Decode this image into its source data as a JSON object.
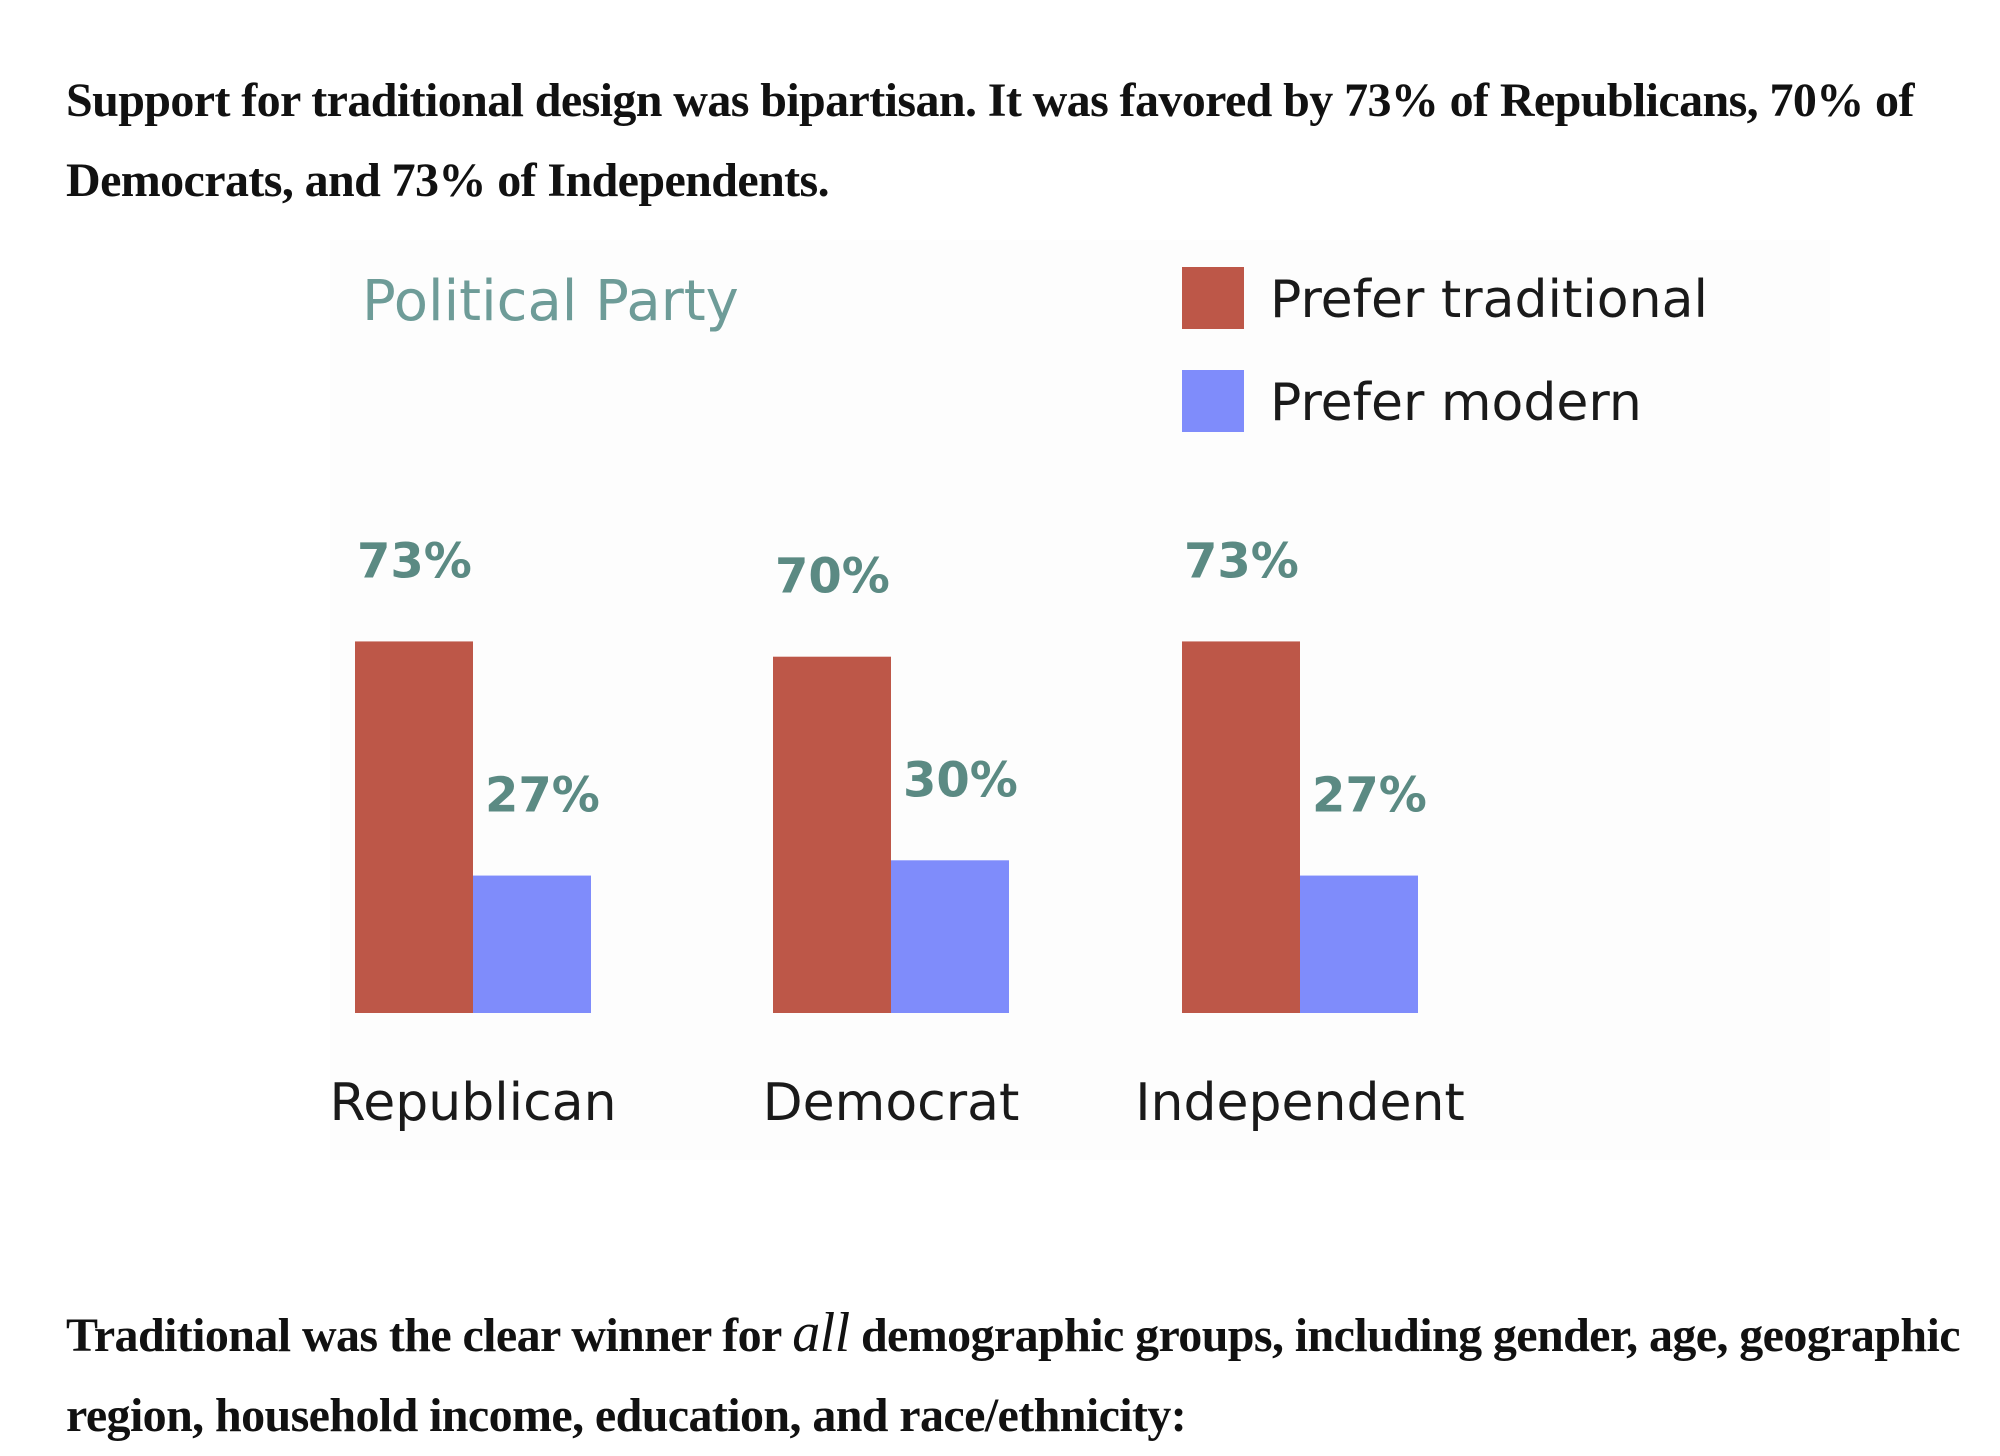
{
  "text": {
    "top_paragraph": "Support for traditional design was bipartisan. It was favored by 73% of Republicans, 70% of Democrats, and 73% of Independents.",
    "bottom_paragraph_before": "Traditional was the clear winner for ",
    "bottom_paragraph_emphasis": "all",
    "bottom_paragraph_after": " demographic groups, including gender, age, geographic region, household income, education, and race/ethnicity:"
  },
  "chart_data": {
    "type": "bar",
    "title": "Political Party",
    "xlabel": "",
    "ylabel": "",
    "ylim": [
      0,
      100
    ],
    "grid": false,
    "legend_position": "top-right",
    "categories": [
      "Republican",
      "Democrat",
      "Independent"
    ],
    "series": [
      {
        "name": "Prefer traditional",
        "color": "#bd5748",
        "values": [
          73,
          70,
          73
        ],
        "labels": [
          "73%",
          "70%",
          "73%"
        ]
      },
      {
        "name": "Prefer modern",
        "color": "#7f8cfb",
        "values": [
          27,
          30,
          27
        ],
        "labels": [
          "27%",
          "30%",
          "27%"
        ]
      }
    ]
  }
}
